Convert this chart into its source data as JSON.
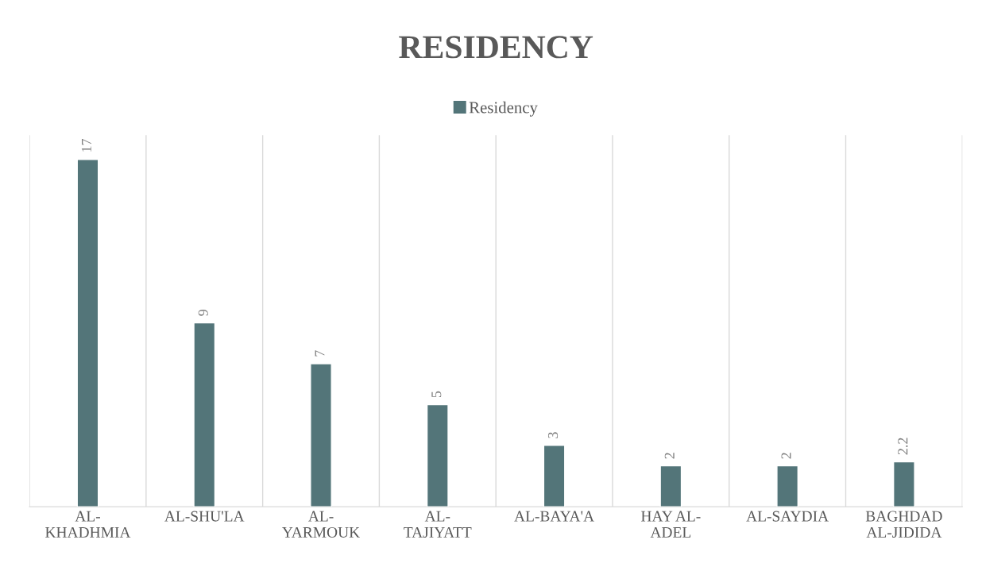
{
  "chart_data": {
    "type": "bar",
    "title": "RESIDENCY",
    "categories": [
      "AL-KHADHMIA",
      "AL-SHU'LA",
      "AL-YARMOUK",
      "AL-TAJIYATT",
      "AL-BAYA'A",
      "HAY AL-ADEL",
      "AL-SAYDIA",
      "BAGHDAD AL-JIDIDA"
    ],
    "series": [
      {
        "name": "Residency",
        "color": "#537579",
        "values": [
          17,
          9,
          7,
          5,
          3,
          2,
          2,
          2.2
        ]
      }
    ],
    "data_labels": true,
    "legend": "top",
    "grid": "x"
  }
}
